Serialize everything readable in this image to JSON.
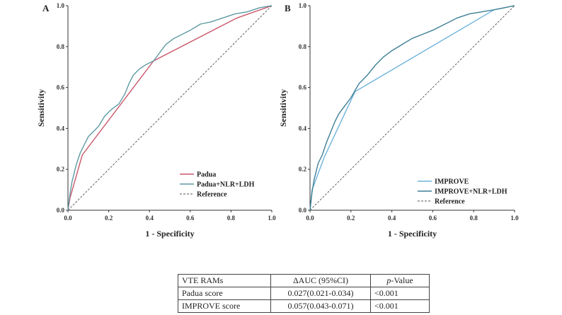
{
  "chart_data": [
    {
      "type": "line",
      "panel": "A",
      "xlabel": "1 - Specificity",
      "ylabel": "Sensitivity",
      "xlim": [
        0,
        1
      ],
      "ylim": [
        0,
        1
      ],
      "ticks": [
        "0.0",
        "0.2",
        "0.4",
        "0.6",
        "0.8",
        "1.0"
      ],
      "tick_values": [
        0,
        0.2,
        0.4,
        0.6,
        0.8,
        1.0
      ],
      "legend_position": "bottom-right",
      "series": [
        {
          "name": "Padua",
          "color": "#c9586b",
          "dashed": false,
          "x": [
            0,
            0.01,
            0.07,
            0.42,
            0.83,
            1.0
          ],
          "y": [
            0,
            0.06,
            0.27,
            0.73,
            0.94,
            1.0
          ]
        },
        {
          "name": "Padua+NLR+LDH",
          "color": "#5e9aa3",
          "dashed": false,
          "x": [
            0,
            0.01,
            0.02,
            0.04,
            0.06,
            0.08,
            0.1,
            0.12,
            0.15,
            0.18,
            0.21,
            0.25,
            0.28,
            0.3,
            0.32,
            0.35,
            0.38,
            0.42,
            0.45,
            0.48,
            0.52,
            0.56,
            0.6,
            0.65,
            0.7,
            0.76,
            0.82,
            0.88,
            0.94,
            1.0
          ],
          "y": [
            0,
            0.08,
            0.14,
            0.22,
            0.28,
            0.32,
            0.36,
            0.38,
            0.41,
            0.46,
            0.49,
            0.52,
            0.57,
            0.62,
            0.66,
            0.69,
            0.71,
            0.73,
            0.77,
            0.81,
            0.84,
            0.86,
            0.88,
            0.91,
            0.92,
            0.94,
            0.96,
            0.97,
            0.99,
            1.0
          ]
        },
        {
          "name": "Reference",
          "color": "#555555",
          "dashed": true,
          "x": [
            0,
            1
          ],
          "y": [
            0,
            1
          ]
        }
      ]
    },
    {
      "type": "line",
      "panel": "B",
      "xlabel": "1 - Specificity",
      "ylabel": "Sensitivity",
      "xlim": [
        0,
        1
      ],
      "ylim": [
        0,
        1
      ],
      "ticks": [
        "0.0",
        "0.2",
        "0.4",
        "0.6",
        "0.8",
        "1.0"
      ],
      "tick_values": [
        0,
        0.2,
        0.4,
        0.6,
        0.8,
        1.0
      ],
      "legend_position": "bottom-right",
      "series": [
        {
          "name": "IMPROVE",
          "color": "#6fb3dc",
          "dashed": false,
          "x": [
            0,
            0.01,
            0.07,
            0.22,
            0.9,
            1.0
          ],
          "y": [
            0,
            0.1,
            0.26,
            0.58,
            0.98,
            1.0
          ]
        },
        {
          "name": "IMPROVE+NLR+LDH",
          "color": "#3f7f95",
          "dashed": false,
          "x": [
            0,
            0.01,
            0.02,
            0.04,
            0.06,
            0.08,
            0.1,
            0.12,
            0.14,
            0.17,
            0.2,
            0.24,
            0.28,
            0.32,
            0.36,
            0.4,
            0.45,
            0.5,
            0.55,
            0.6,
            0.66,
            0.72,
            0.78,
            0.84,
            0.9,
            0.95,
            1.0
          ],
          "y": [
            0,
            0.09,
            0.15,
            0.23,
            0.27,
            0.33,
            0.38,
            0.43,
            0.47,
            0.51,
            0.55,
            0.62,
            0.66,
            0.71,
            0.75,
            0.78,
            0.81,
            0.84,
            0.86,
            0.88,
            0.91,
            0.94,
            0.96,
            0.97,
            0.98,
            0.99,
            1.0
          ]
        },
        {
          "name": "Reference",
          "color": "#555555",
          "dashed": true,
          "x": [
            0,
            1
          ],
          "y": [
            0,
            1
          ]
        }
      ]
    }
  ],
  "table": {
    "headers": [
      "VTE RAMs",
      "ΔAUC (95%CI)",
      "-Value"
    ],
    "p_letter": "p",
    "rows": [
      [
        "Padua score",
        "0.027(0.021-0.034)",
        "<0.001"
      ],
      [
        "IMPROVE score",
        "0.057(0.043-0.071)",
        "<0.001"
      ]
    ]
  }
}
